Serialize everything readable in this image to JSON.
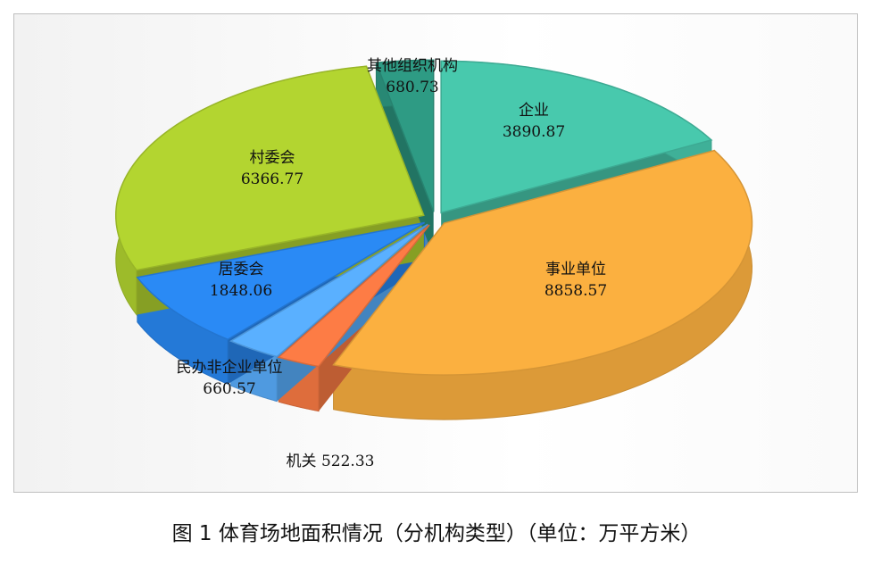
{
  "chart_data": {
    "type": "pie",
    "style": "3d-exploded",
    "title": "图 1 体育场地面积情况（分机构类型）（单位：万平方米）",
    "slices": [
      {
        "label": "企业",
        "value": 3890.87,
        "value_text": "3890.87",
        "color": "#48c9ad"
      },
      {
        "label": "事业单位",
        "value": 8858.57,
        "value_text": "8858.57",
        "color": "#fbb040"
      },
      {
        "label": "机关",
        "value": 522.33,
        "value_text": "522.33",
        "color": "#fd7c45"
      },
      {
        "label": "民办非企业单位",
        "value": 660.57,
        "value_text": "660.57",
        "color": "#5ab0ff"
      },
      {
        "label": "居委会",
        "value": 1848.06,
        "value_text": "1848.06",
        "color": "#2a8af5"
      },
      {
        "label": "村委会",
        "value": 6366.77,
        "value_text": "6366.77",
        "color": "#b3d530"
      },
      {
        "label": "其他组织机构",
        "value": 680.73,
        "value_text": "680.73",
        "color": "#2e9b84"
      }
    ]
  }
}
